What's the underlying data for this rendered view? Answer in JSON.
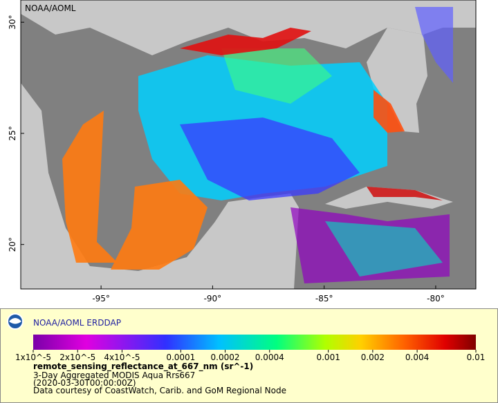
{
  "map": {
    "watermark": "NOAA/AOML",
    "xlim": [
      -98.6,
      -78.2
    ],
    "ylim": [
      18,
      31
    ],
    "xticks": [
      {
        "value": -95,
        "label": "-95°"
      },
      {
        "value": -90,
        "label": "-90°"
      },
      {
        "value": -85,
        "label": "-85°"
      },
      {
        "value": -80,
        "label": "-80°"
      }
    ],
    "yticks": [
      {
        "value": 20,
        "label": "20°"
      },
      {
        "value": 25,
        "label": "25°"
      },
      {
        "value": 30,
        "label": "30°"
      }
    ]
  },
  "legend": {
    "title": "NOAA/AOML ERDDAP",
    "colorbar": {
      "scale": "log",
      "lim": [
        1e-05,
        0.01
      ],
      "ticks": [
        {
          "value": 1e-05,
          "label": "1x10^-5"
        },
        {
          "value": 2e-05,
          "label": "2x10^-5"
        },
        {
          "value": 4e-05,
          "label": "4x10^-5"
        },
        {
          "value": 0.0001,
          "label": "0.0001"
        },
        {
          "value": 0.0002,
          "label": "0.0002"
        },
        {
          "value": 0.0004,
          "label": "0.0004"
        },
        {
          "value": 0.001,
          "label": "0.001"
        },
        {
          "value": 0.002,
          "label": "0.002"
        },
        {
          "value": 0.004,
          "label": "0.004"
        },
        {
          "value": 0.01,
          "label": "0.01"
        }
      ]
    },
    "variable": "remote_sensing_reflectance_at_667_nm (sr^-1)",
    "lines": [
      "3-Day Aggregated MODIS Aqua Rrs667",
      "(2020-03-30T00:00:00Z)",
      "Data courtesy of CoastWatch, Carib. and GoM Regional Node"
    ]
  }
}
